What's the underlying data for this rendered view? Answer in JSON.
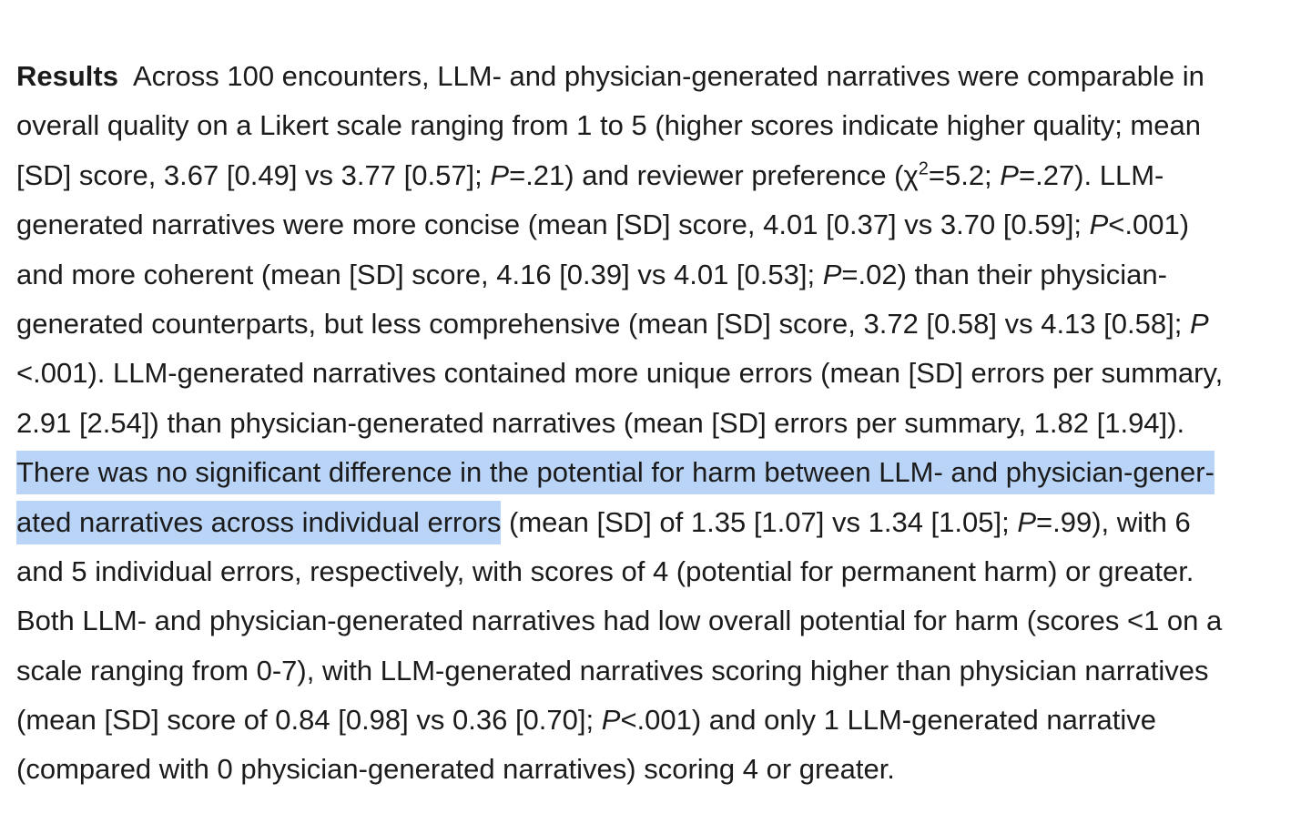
{
  "paragraph": {
    "top_fragment": "2020",
    "label": "Results",
    "lines": [
      {
        "segments": [
          {
            "text": "Across 100 encounters, LLM- and physician-generated narratives were comparable in"
          }
        ]
      },
      {
        "segments": [
          {
            "text": "overall quality on a Likert scale ranging from 1 to 5 (higher scores indicate higher quality; mean"
          }
        ]
      },
      {
        "segments": [
          {
            "text": "[SD] score, 3.67 [0.49] vs 3.77 [0.57]; "
          },
          {
            "text": "P",
            "italic": true
          },
          {
            "text": "=.21) and reviewer preference (χ"
          },
          {
            "text": "2",
            "sup": true
          },
          {
            "text": "=5.2; "
          },
          {
            "text": "P",
            "italic": true
          },
          {
            "text": "=.27). LLM-"
          }
        ]
      },
      {
        "segments": [
          {
            "text": "generated narratives were more concise (mean [SD] score, 4.01 [0.37] vs 3.70 [0.59]; "
          },
          {
            "text": "P",
            "italic": true
          },
          {
            "text": "<.001)"
          }
        ]
      },
      {
        "segments": [
          {
            "text": "and more coherent (mean [SD] score, 4.16 [0.39] vs 4.01 [0.53]; "
          },
          {
            "text": "P",
            "italic": true
          },
          {
            "text": "=.02) than their physician-"
          }
        ]
      },
      {
        "segments": [
          {
            "text": "generated counterparts, but less comprehensive (mean [SD] score, 3.72 [0.58] vs 4.13 [0.58]; "
          },
          {
            "text": "P",
            "italic": true
          }
        ]
      },
      {
        "segments": [
          {
            "text": "<.001). LLM-generated narratives contained more unique errors (mean [SD] errors per summary,"
          }
        ]
      },
      {
        "segments": [
          {
            "text": "2.91 [2.54]) than physician-generated narratives (mean [SD] errors per summary, 1.82 [1.94])."
          }
        ]
      },
      {
        "segments": [
          {
            "text": "There was no significant difference in the potential for harm between LLM- and physician-gener-",
            "highlight": true
          }
        ]
      },
      {
        "segments": [
          {
            "text": "ated narratives across individual errors",
            "highlight": true
          },
          {
            "text": " (mean [SD] of 1.35 [1.07] vs 1.34 [1.05]; "
          },
          {
            "text": "P",
            "italic": true
          },
          {
            "text": "=.99), with 6"
          }
        ]
      },
      {
        "segments": [
          {
            "text": "and 5 individual errors, respectively, with scores of 4 (potential for permanent harm) or greater."
          }
        ]
      },
      {
        "segments": [
          {
            "text": "Both LLM- and physician-generated narratives had low overall potential for harm (scores <1 on a"
          }
        ]
      },
      {
        "segments": [
          {
            "text": "scale ranging from 0-7), with LLM-generated narratives scoring higher than physician narratives"
          }
        ]
      },
      {
        "segments": [
          {
            "text": "(mean [SD] score of 0.84 [0.98] vs 0.36 [0.70]; "
          },
          {
            "text": "P",
            "italic": true
          },
          {
            "text": "<.001) and only 1 LLM-generated narrative"
          }
        ]
      },
      {
        "segments": [
          {
            "text": "(compared with 0 physician-generated narratives) scoring 4 or greater."
          }
        ]
      }
    ]
  },
  "colors": {
    "text": "#1b1b1b",
    "highlight": "#b9d4f7",
    "background": "#ffffff"
  }
}
